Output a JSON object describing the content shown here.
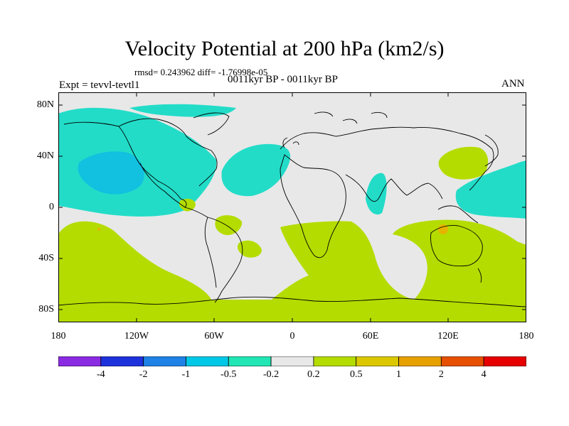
{
  "title": "Velocity Potential at 200 hPa (km2/s)",
  "stats": "rmsd= 0.243962 diff= -1.76998e-05",
  "expt": "Expt = tevvl-tevtl1",
  "period": "0011kyr BP - 0011kyr BP",
  "season": "ANN",
  "lat_ticks": [
    "80N",
    "40N",
    "0",
    "40S",
    "80S"
  ],
  "lon_ticks": [
    "180",
    "120W",
    "60W",
    "0",
    "60E",
    "120E",
    "180"
  ],
  "colorbar": {
    "colors": [
      "#8a2be2",
      "#1e32dc",
      "#1e82e6",
      "#00c8e6",
      "#22e6b4",
      "#e8e8e8",
      "#b4dc00",
      "#dcc800",
      "#e6a000",
      "#e65000",
      "#e60000"
    ],
    "labels": [
      "-4",
      "-2",
      "-1",
      "-0.5",
      "-0.2",
      "0.2",
      "0.5",
      "1",
      "2",
      "4"
    ]
  },
  "fills": {
    "background": "#e8e8e8",
    "negative": "#22dcc8",
    "negative_strong": "#12c0e0",
    "positive": "#b4dc00",
    "positive_strong": "#e6b400"
  }
}
